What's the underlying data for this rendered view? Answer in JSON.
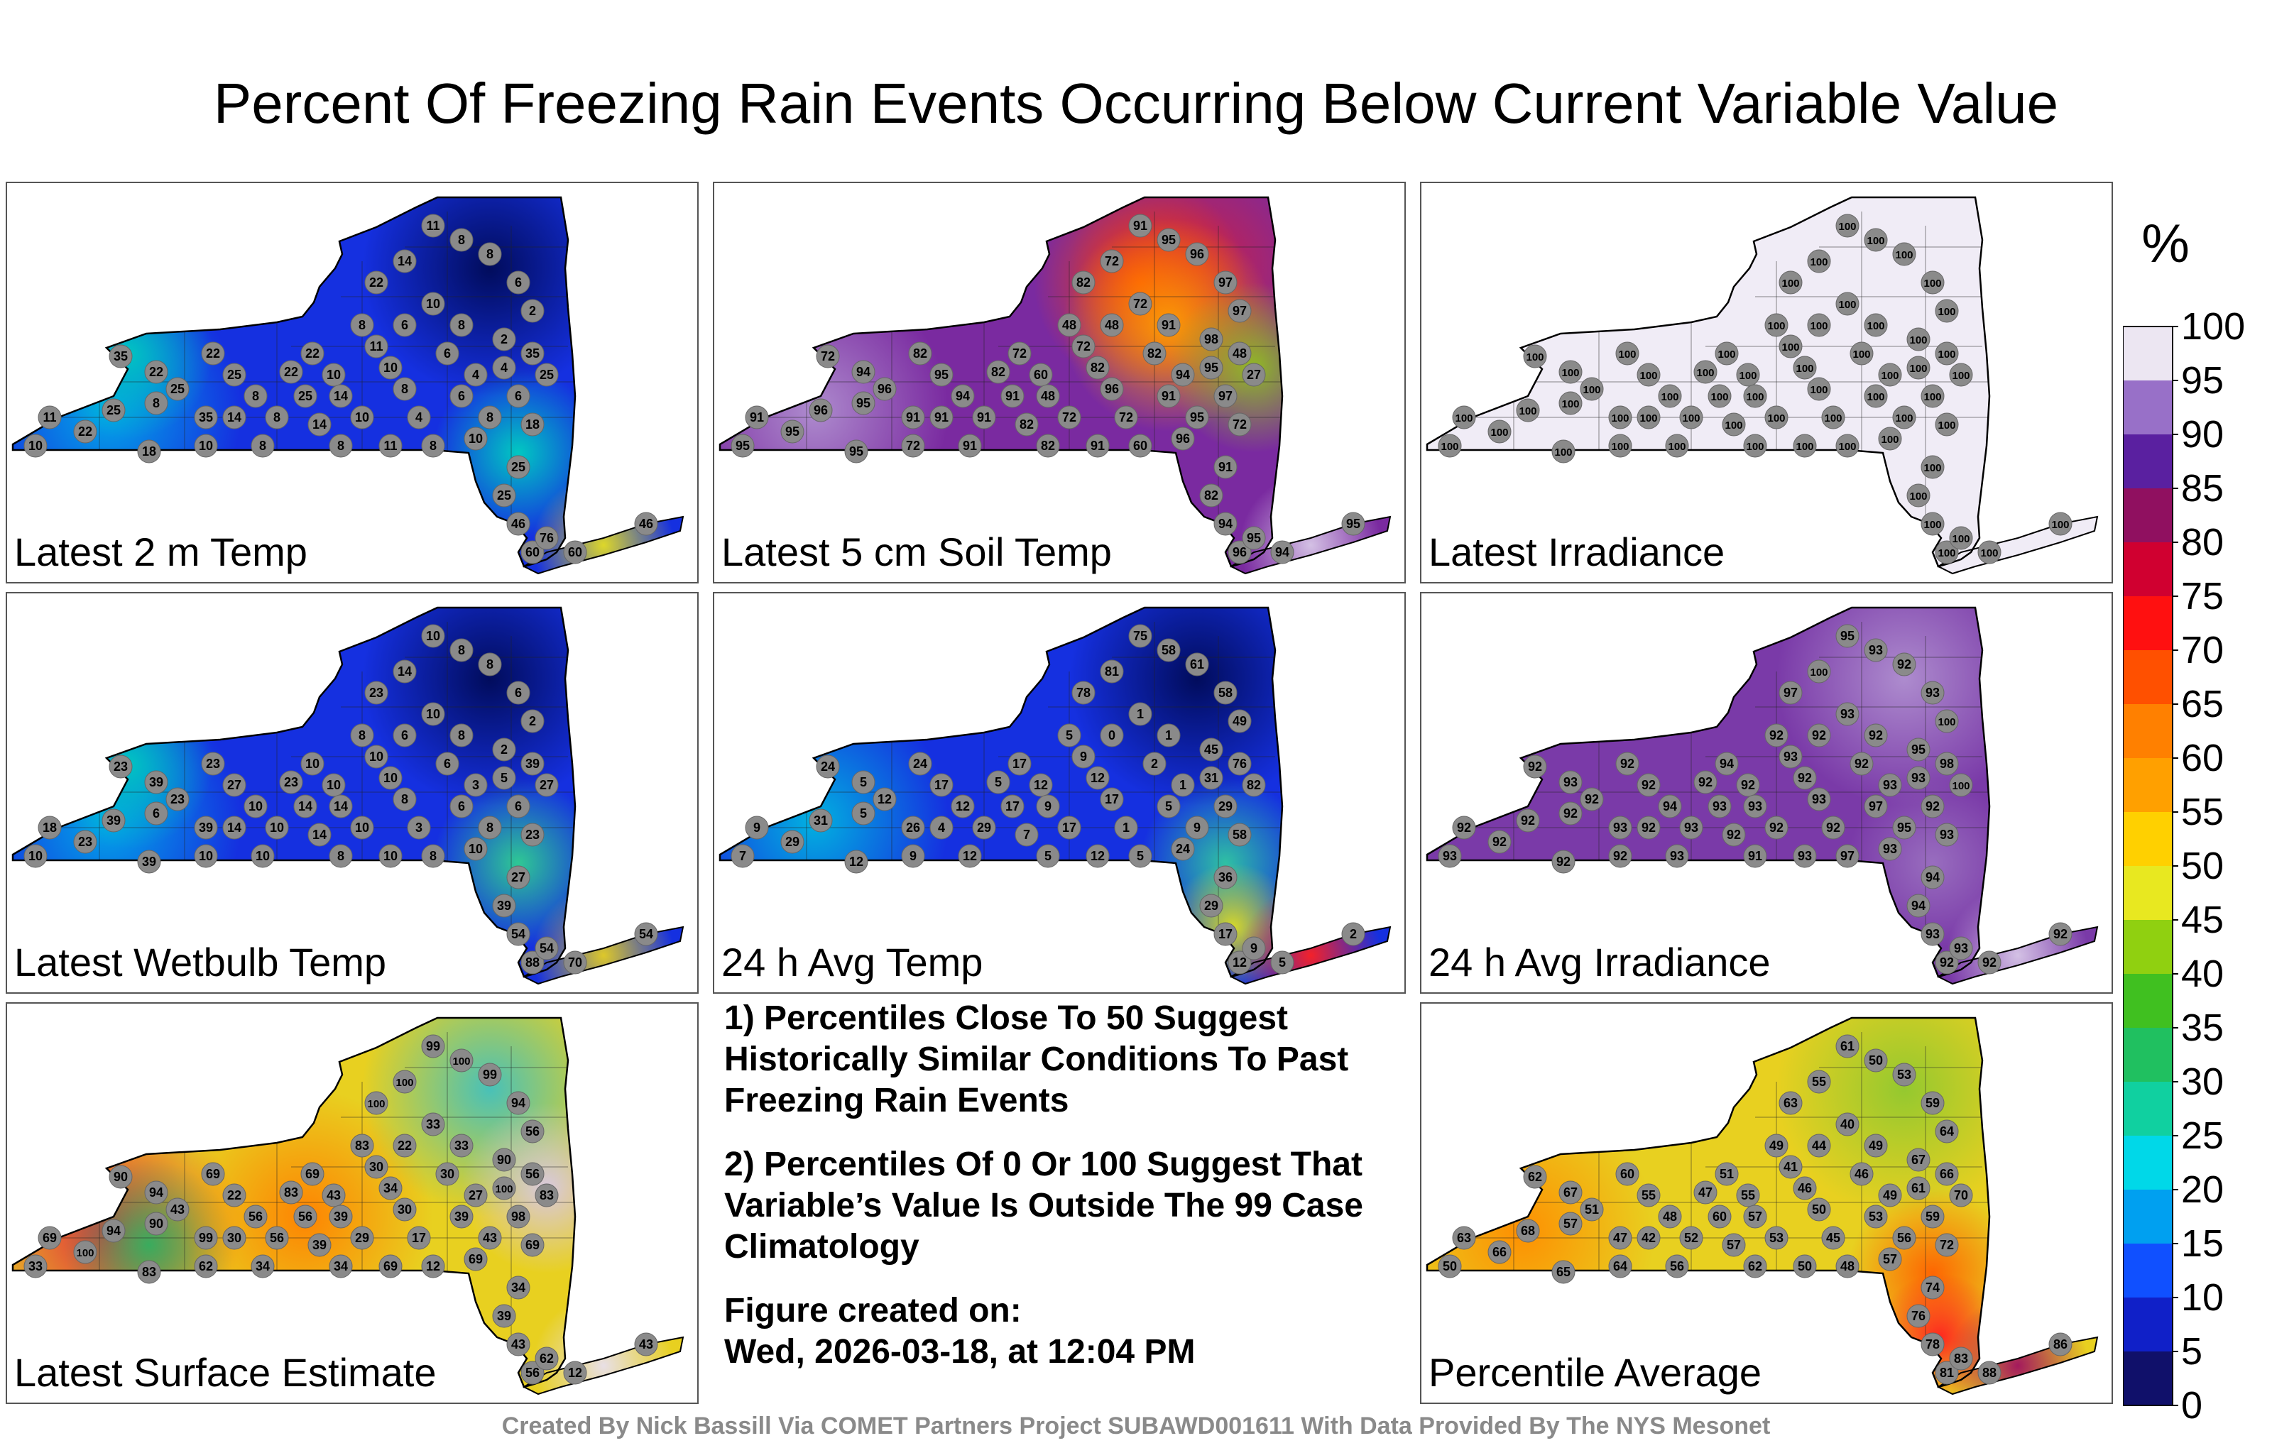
{
  "title": "Percent Of Freezing Rain Events Occurring Below Current Variable Value",
  "footer": "Created By Nick Bassill Via COMET Partners Project SUBAWD001611 With Data Provided By The NYS Mesonet",
  "notes": {
    "note1": "1) Percentiles Close To 50 Suggest Historically Similar Conditions To Past Freezing Rain Events",
    "note2": "2) Percentiles Of 0 Or 100 Suggest That Variable’s Value Is Outside The 99 Case Climatology",
    "created_label": "Figure created on:",
    "created_value": "Wed, 2026-03-18, at 12:04 PM"
  },
  "colorbar": {
    "unit": "%",
    "ticks": [
      "100",
      "95",
      "90",
      "85",
      "80",
      "75",
      "70",
      "65",
      "60",
      "55",
      "50",
      "45",
      "40",
      "35",
      "30",
      "25",
      "20",
      "15",
      "10",
      "5",
      "0"
    ]
  },
  "chart_data": [
    {
      "type": "heatmap",
      "title": "Latest 2 m Temp",
      "base": "#1530e0",
      "blobs": [
        {
          "c": "#00aee8",
          "region": "west"
        },
        {
          "c": "#00c8c0",
          "region": "west-north"
        },
        {
          "c": "#00d0c0",
          "region": "hudson"
        },
        {
          "c": "#e8e020",
          "region": "li"
        },
        {
          "c": "#000a55",
          "region": "north"
        }
      ],
      "station_values": [
        10,
        22,
        25,
        11,
        18,
        35,
        22,
        25,
        8,
        35,
        22,
        25,
        8,
        14,
        10,
        8,
        22,
        25,
        14,
        8,
        22,
        10,
        14,
        10,
        8,
        11,
        8,
        11,
        10,
        8,
        4,
        8,
        6,
        10,
        8,
        6,
        4,
        6,
        8,
        10,
        6,
        4,
        2,
        2,
        6,
        8,
        8,
        11,
        14,
        22,
        35,
        25,
        18,
        25,
        25,
        46,
        60,
        76,
        60,
        46
      ]
    },
    {
      "type": "heatmap",
      "title": "Latest 5 cm Soil Temp",
      "base": "#7a2aa0",
      "blobs": [
        {
          "c": "#d02040",
          "region": "north"
        },
        {
          "c": "#ff4000",
          "region": "north-core"
        },
        {
          "c": "#ffa000",
          "region": "adirondack"
        },
        {
          "c": "#90c020",
          "region": "east"
        },
        {
          "c": "#b090d0",
          "region": "west"
        },
        {
          "c": "#d8c8e8",
          "region": "li"
        }
      ],
      "station_values": [
        95,
        95,
        96,
        91,
        95,
        72,
        94,
        96,
        95,
        91,
        82,
        95,
        94,
        91,
        72,
        91,
        82,
        91,
        82,
        91,
        72,
        60,
        48,
        72,
        82,
        91,
        48,
        72,
        82,
        96,
        72,
        60,
        48,
        72,
        91,
        82,
        94,
        91,
        95,
        96,
        97,
        95,
        98,
        97,
        97,
        96,
        95,
        91,
        72,
        82,
        48,
        27,
        72,
        91,
        82,
        94,
        96,
        95,
        94,
        95
      ]
    },
    {
      "type": "heatmap",
      "title": "Latest Irradiance",
      "base": "#f0ecf6",
      "blobs": [],
      "station_values": [
        100,
        100,
        100,
        100,
        100,
        100,
        100,
        100,
        100,
        100,
        100,
        100,
        100,
        100,
        100,
        100,
        100,
        100,
        100,
        100,
        100,
        100,
        100,
        100,
        100,
        100,
        100,
        100,
        100,
        100,
        100,
        100,
        100,
        100,
        100,
        100,
        100,
        100,
        100,
        100,
        100,
        100,
        100,
        100,
        100,
        100,
        100,
        100,
        100,
        100,
        100,
        100,
        100,
        100,
        100,
        100,
        100,
        100,
        100,
        100
      ]
    },
    {
      "type": "heatmap",
      "title": "Latest Wetbulb Temp",
      "base": "#1530e0",
      "blobs": [
        {
          "c": "#00aee8",
          "region": "west"
        },
        {
          "c": "#00c8c0",
          "region": "west-north"
        },
        {
          "c": "#30d090",
          "region": "hudson"
        },
        {
          "c": "#e8d020",
          "region": "li"
        },
        {
          "c": "#000a55",
          "region": "north"
        }
      ],
      "station_values": [
        10,
        23,
        39,
        18,
        39,
        23,
        39,
        23,
        6,
        39,
        23,
        27,
        10,
        14,
        10,
        10,
        23,
        14,
        14,
        10,
        10,
        10,
        14,
        10,
        8,
        10,
        8,
        10,
        10,
        8,
        3,
        8,
        6,
        10,
        8,
        6,
        3,
        6,
        8,
        10,
        6,
        5,
        2,
        2,
        6,
        8,
        8,
        10,
        14,
        23,
        39,
        27,
        23,
        27,
        39,
        54,
        88,
        54,
        70,
        54
      ]
    },
    {
      "type": "heatmap",
      "title": "24 h Avg Temp",
      "base": "#1530e0",
      "blobs": [
        {
          "c": "#00b8e0",
          "region": "west"
        },
        {
          "c": "#30c8a0",
          "region": "hudson"
        },
        {
          "c": "#e0e020",
          "region": "hudson-south"
        },
        {
          "c": "#ff2020",
          "region": "li"
        },
        {
          "c": "#000a55",
          "region": "north"
        }
      ],
      "station_values": [
        7,
        29,
        31,
        9,
        12,
        24,
        5,
        12,
        5,
        26,
        24,
        17,
        12,
        4,
        9,
        12,
        5,
        17,
        7,
        29,
        17,
        12,
        9,
        17,
        5,
        12,
        5,
        9,
        12,
        17,
        1,
        5,
        0,
        1,
        1,
        2,
        1,
        5,
        9,
        24,
        29,
        31,
        45,
        49,
        58,
        61,
        58,
        75,
        81,
        78,
        76,
        82,
        58,
        36,
        29,
        17,
        12,
        9,
        5,
        2
      ]
    },
    {
      "type": "heatmap",
      "title": "24 h Avg Irradiance",
      "base": "#7a3aa8",
      "blobs": [
        {
          "c": "#b090d0",
          "region": "north"
        },
        {
          "c": "#d8c8e8",
          "region": "li"
        },
        {
          "c": "#9a70c0",
          "region": "hudson"
        }
      ],
      "station_values": [
        93,
        92,
        92,
        92,
        92,
        92,
        93,
        92,
        92,
        93,
        92,
        92,
        94,
        92,
        92,
        93,
        92,
        93,
        92,
        93,
        94,
        92,
        93,
        92,
        91,
        93,
        92,
        93,
        92,
        93,
        92,
        97,
        92,
        93,
        92,
        92,
        93,
        97,
        95,
        93,
        92,
        93,
        95,
        100,
        93,
        92,
        93,
        95,
        100,
        97,
        98,
        100,
        93,
        94,
        94,
        93,
        92,
        93,
        92,
        92
      ]
    },
    {
      "type": "heatmap",
      "title": "Latest Surface Estimate",
      "base": "#e8d020",
      "blobs": [
        {
          "c": "#e02040",
          "region": "west"
        },
        {
          "c": "#30b060",
          "region": "west-south"
        },
        {
          "c": "#ff8000",
          "region": "central"
        },
        {
          "c": "#40c0c0",
          "region": "north"
        },
        {
          "c": "#d8c8e8",
          "region": "east"
        },
        {
          "c": "#e8e0f0",
          "region": "li"
        }
      ],
      "station_values": [
        33,
        100,
        94,
        69,
        83,
        90,
        94,
        43,
        90,
        99,
        69,
        22,
        56,
        30,
        62,
        34,
        83,
        56,
        39,
        56,
        69,
        43,
        39,
        29,
        34,
        69,
        83,
        30,
        34,
        30,
        17,
        12,
        22,
        33,
        33,
        30,
        27,
        39,
        43,
        69,
        98,
        100,
        90,
        56,
        94,
        99,
        100,
        99,
        100,
        100,
        56,
        83,
        69,
        34,
        39,
        43,
        56,
        62,
        12,
        43
      ]
    },
    {
      "type": "heatmap",
      "title": "Percentile Average",
      "base": "#e8d020",
      "blobs": [
        {
          "c": "#ff8c00",
          "region": "west"
        },
        {
          "c": "#90c830",
          "region": "north"
        },
        {
          "c": "#ff6000",
          "region": "hudson"
        },
        {
          "c": "#ff2020",
          "region": "hudson-south"
        },
        {
          "c": "#a01060",
          "region": "li"
        }
      ],
      "station_values": [
        50,
        66,
        68,
        63,
        65,
        62,
        67,
        51,
        57,
        47,
        60,
        55,
        48,
        42,
        64,
        56,
        47,
        60,
        57,
        52,
        51,
        55,
        57,
        53,
        62,
        50,
        49,
        41,
        46,
        50,
        45,
        48,
        44,
        40,
        49,
        46,
        49,
        53,
        56,
        57,
        59,
        61,
        67,
        64,
        59,
        53,
        50,
        61,
        55,
        63,
        66,
        70,
        72,
        74,
        76,
        78,
        81,
        83,
        88,
        86
      ]
    }
  ]
}
